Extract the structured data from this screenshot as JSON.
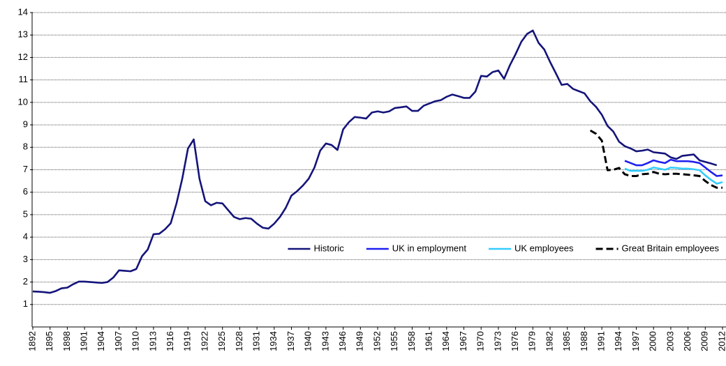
{
  "chart_data": {
    "type": "line",
    "x": [
      1892,
      1893,
      1894,
      1895,
      1896,
      1897,
      1898,
      1899,
      1900,
      1901,
      1902,
      1903,
      1904,
      1905,
      1906,
      1907,
      1908,
      1909,
      1910,
      1911,
      1912,
      1913,
      1914,
      1915,
      1916,
      1917,
      1918,
      1919,
      1920,
      1921,
      1922,
      1923,
      1924,
      1925,
      1926,
      1927,
      1928,
      1929,
      1930,
      1931,
      1932,
      1933,
      1934,
      1935,
      1936,
      1937,
      1938,
      1939,
      1940,
      1941,
      1942,
      1943,
      1944,
      1945,
      1946,
      1947,
      1948,
      1949,
      1950,
      1951,
      1952,
      1953,
      1954,
      1955,
      1956,
      1957,
      1958,
      1959,
      1960,
      1961,
      1962,
      1963,
      1964,
      1965,
      1966,
      1967,
      1968,
      1969,
      1970,
      1971,
      1972,
      1973,
      1974,
      1975,
      1976,
      1977,
      1978,
      1979,
      1980,
      1981,
      1982,
      1983,
      1984,
      1985,
      1986,
      1987,
      1988,
      1989,
      1990,
      1991,
      1992,
      1993,
      1994,
      1995,
      1996,
      1997,
      1998,
      1999,
      2000,
      2001,
      2002,
      2003,
      2004,
      2005,
      2006,
      2007,
      2008,
      2009,
      2010,
      2011,
      2012
    ],
    "series": [
      {
        "name": "Historic",
        "color": "#14147a",
        "dashed": false,
        "values": [
          1.58,
          1.57,
          1.55,
          1.52,
          1.6,
          1.72,
          1.75,
          1.9,
          2.02,
          2.02,
          2.0,
          1.98,
          1.96,
          2.0,
          2.2,
          2.52,
          2.5,
          2.48,
          2.58,
          3.15,
          3.45,
          4.13,
          4.15,
          4.35,
          4.62,
          5.5,
          6.6,
          7.95,
          8.35,
          6.6,
          5.6,
          5.42,
          5.53,
          5.5,
          5.2,
          4.9,
          4.8,
          4.85,
          4.82,
          4.6,
          4.42,
          4.38,
          4.6,
          4.9,
          5.3,
          5.85,
          6.05,
          6.3,
          6.6,
          7.1,
          7.85,
          8.17,
          8.1,
          7.88,
          8.8,
          9.12,
          9.35,
          9.32,
          9.28,
          9.55,
          9.6,
          9.55,
          9.6,
          9.75,
          9.78,
          9.82,
          9.62,
          9.62,
          9.85,
          9.95,
          10.05,
          10.1,
          10.25,
          10.35,
          10.28,
          10.2,
          10.2,
          10.48,
          11.18,
          11.15,
          11.35,
          11.42,
          11.05,
          11.65,
          12.15,
          12.7,
          13.05,
          13.2,
          12.65,
          12.35,
          11.8,
          11.3,
          10.78,
          10.82,
          10.6,
          10.5,
          10.4,
          10.05,
          9.8,
          9.45,
          8.95,
          8.7,
          8.25,
          8.05,
          7.95,
          7.82,
          7.85,
          7.9,
          7.78,
          7.75,
          7.72,
          7.55,
          7.48,
          7.62,
          7.65,
          7.68,
          7.42,
          7.35,
          7.28,
          7.2,
          null
        ]
      },
      {
        "name": "UK in employment",
        "color": "#1e1ef0",
        "dashed": false,
        "values": [
          null,
          null,
          null,
          null,
          null,
          null,
          null,
          null,
          null,
          null,
          null,
          null,
          null,
          null,
          null,
          null,
          null,
          null,
          null,
          null,
          null,
          null,
          null,
          null,
          null,
          null,
          null,
          null,
          null,
          null,
          null,
          null,
          null,
          null,
          null,
          null,
          null,
          null,
          null,
          null,
          null,
          null,
          null,
          null,
          null,
          null,
          null,
          null,
          null,
          null,
          null,
          null,
          null,
          null,
          null,
          null,
          null,
          null,
          null,
          null,
          null,
          null,
          null,
          null,
          null,
          null,
          null,
          null,
          null,
          null,
          null,
          null,
          null,
          null,
          null,
          null,
          null,
          null,
          null,
          null,
          null,
          null,
          null,
          null,
          null,
          null,
          null,
          null,
          null,
          null,
          null,
          null,
          null,
          null,
          null,
          null,
          null,
          null,
          null,
          null,
          null,
          null,
          null,
          7.4,
          7.3,
          7.2,
          7.2,
          7.3,
          7.42,
          7.35,
          7.3,
          7.45,
          7.38,
          7.38,
          7.38,
          7.35,
          7.3,
          7.1,
          6.9,
          6.72,
          6.75
        ]
      },
      {
        "name": "UK employees",
        "color": "#33ccff",
        "dashed": false,
        "values": [
          null,
          null,
          null,
          null,
          null,
          null,
          null,
          null,
          null,
          null,
          null,
          null,
          null,
          null,
          null,
          null,
          null,
          null,
          null,
          null,
          null,
          null,
          null,
          null,
          null,
          null,
          null,
          null,
          null,
          null,
          null,
          null,
          null,
          null,
          null,
          null,
          null,
          null,
          null,
          null,
          null,
          null,
          null,
          null,
          null,
          null,
          null,
          null,
          null,
          null,
          null,
          null,
          null,
          null,
          null,
          null,
          null,
          null,
          null,
          null,
          null,
          null,
          null,
          null,
          null,
          null,
          null,
          null,
          null,
          null,
          null,
          null,
          null,
          null,
          null,
          null,
          null,
          null,
          null,
          null,
          null,
          null,
          null,
          null,
          null,
          null,
          null,
          null,
          null,
          null,
          null,
          null,
          null,
          null,
          null,
          null,
          null,
          null,
          null,
          null,
          null,
          null,
          null,
          7.05,
          6.95,
          6.95,
          6.95,
          7.0,
          7.1,
          7.05,
          7.0,
          7.1,
          7.08,
          7.05,
          7.05,
          7.02,
          6.98,
          6.75,
          6.55,
          6.38,
          6.45
        ]
      },
      {
        "name": "Great Britain employees",
        "color": "#000000",
        "dashed": true,
        "values": [
          null,
          null,
          null,
          null,
          null,
          null,
          null,
          null,
          null,
          null,
          null,
          null,
          null,
          null,
          null,
          null,
          null,
          null,
          null,
          null,
          null,
          null,
          null,
          null,
          null,
          null,
          null,
          null,
          null,
          null,
          null,
          null,
          null,
          null,
          null,
          null,
          null,
          null,
          null,
          null,
          null,
          null,
          null,
          null,
          null,
          null,
          null,
          null,
          null,
          null,
          null,
          null,
          null,
          null,
          null,
          null,
          null,
          null,
          null,
          null,
          null,
          null,
          null,
          null,
          null,
          null,
          null,
          null,
          null,
          null,
          null,
          null,
          null,
          null,
          null,
          null,
          null,
          null,
          null,
          null,
          null,
          null,
          null,
          null,
          null,
          null,
          null,
          null,
          null,
          null,
          null,
          null,
          null,
          null,
          null,
          null,
          null,
          8.75,
          8.6,
          8.3,
          6.98,
          7.0,
          7.08,
          6.8,
          6.72,
          6.72,
          6.8,
          6.82,
          6.9,
          6.82,
          6.8,
          6.82,
          6.82,
          6.8,
          6.78,
          6.75,
          6.72,
          6.5,
          6.32,
          6.2,
          6.2
        ]
      }
    ],
    "xlim": [
      1892,
      2012
    ],
    "xticks": [
      1892,
      1895,
      1898,
      1901,
      1904,
      1907,
      1910,
      1913,
      1916,
      1919,
      1922,
      1925,
      1928,
      1931,
      1934,
      1937,
      1940,
      1943,
      1946,
      1949,
      1952,
      1955,
      1958,
      1961,
      1964,
      1967,
      1970,
      1973,
      1976,
      1979,
      1982,
      1985,
      1988,
      1991,
      1994,
      1997,
      2000,
      2003,
      2006,
      2009,
      2012
    ],
    "ylim": [
      0,
      14
    ],
    "yticks": [
      1,
      2,
      3,
      4,
      5,
      6,
      7,
      8,
      9,
      10,
      11,
      12,
      13,
      14
    ],
    "grid": true,
    "legend": "lower right"
  }
}
